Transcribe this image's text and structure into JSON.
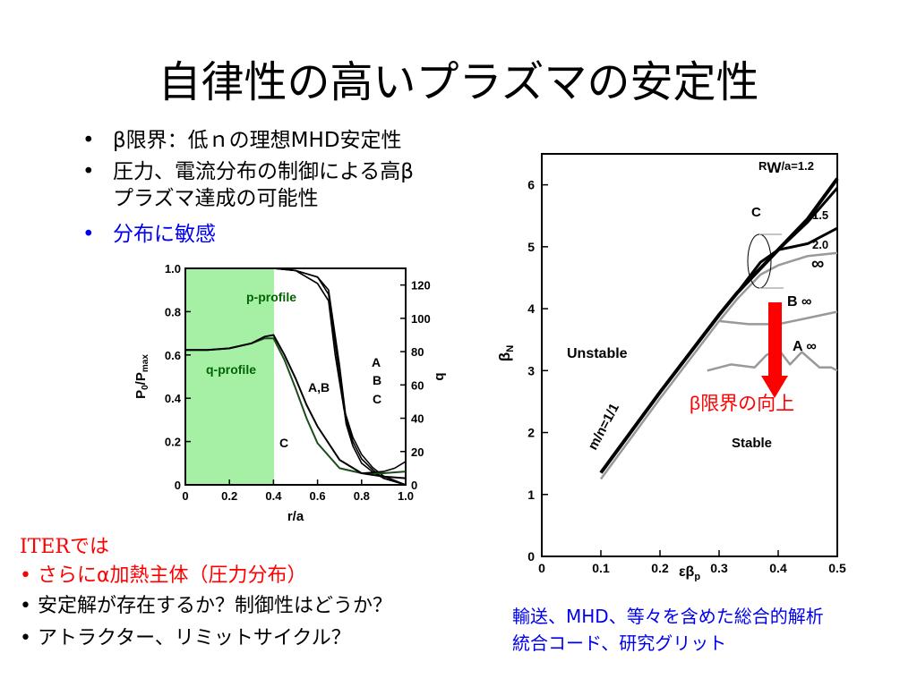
{
  "slide": {
    "title": "自律性の高いプラズマの安定性",
    "bullets": [
      {
        "marker": "•",
        "text": "β限界：低ｎの理想MHD安定性",
        "color": "#000000"
      },
      {
        "marker": "•",
        "text": "圧力、電流分布の制御による高β",
        "text2": "プラズマ達成の可能性",
        "color": "#000000"
      },
      {
        "marker": "•",
        "text": "分布に敏感",
        "color": "#0000ee"
      }
    ],
    "iter_note": {
      "heading": "ITERでは",
      "lines": [
        "• さらにα加熱主体（圧力分布）",
        "• 安定解が存在するか？制御性はどうか？",
        "• アトラクター、リミットサイクル？"
      ]
    },
    "right_note": {
      "lines": [
        "輸送、MHD、等々を含めた総合的解析",
        "統合コード、研究グリット"
      ]
    },
    "colors": {
      "title": "#000000",
      "blue": "#0000ee",
      "red": "#ff0000",
      "green_band": "#a6f0a6",
      "profile_label": "#006400"
    }
  },
  "chart_data": [
    {
      "type": "line",
      "xlabel": "r/a",
      "ylabel_left": "P0/Pmax",
      "ylabel_right": "q",
      "xlim": [
        0,
        1.0
      ],
      "ylim_left": [
        0,
        1.0
      ],
      "ylim_right": [
        0,
        130
      ],
      "x_ticks": [
        "0",
        "0.2",
        "0.4",
        "0.6",
        "0.8",
        "1.0"
      ],
      "y_left_ticks": [
        "0",
        "0.2",
        "0.4",
        "0.6",
        "0.8",
        "1.0"
      ],
      "y_right_ticks": [
        "0",
        "20",
        "40",
        "60",
        "80",
        "100",
        "120"
      ],
      "shaded_region_x": [
        0,
        0.4
      ],
      "annotations": [
        "p-profile",
        "q-profile",
        "A,B",
        "C",
        "A",
        "B",
        "C"
      ],
      "series": [
        {
          "name": "p A",
          "axis": "left",
          "x": [
            0.4,
            0.5,
            0.6,
            0.65,
            0.7,
            0.73,
            0.76,
            0.8,
            0.85,
            0.9,
            1.0
          ],
          "y": [
            1.0,
            0.99,
            0.96,
            0.9,
            0.55,
            0.3,
            0.2,
            0.12,
            0.07,
            0.03,
            0.0
          ]
        },
        {
          "name": "p B",
          "axis": "left",
          "x": [
            0.4,
            0.5,
            0.6,
            0.65,
            0.7,
            0.73,
            0.76,
            0.8,
            0.85,
            0.9,
            1.0
          ],
          "y": [
            1.0,
            0.99,
            0.96,
            0.88,
            0.5,
            0.28,
            0.18,
            0.1,
            0.06,
            0.03,
            0.0
          ]
        },
        {
          "name": "p C",
          "axis": "left",
          "x": [
            0.4,
            0.5,
            0.6,
            0.65,
            0.68,
            0.72,
            0.76,
            0.8,
            0.85,
            0.9,
            1.0
          ],
          "y": [
            1.0,
            0.99,
            0.93,
            0.85,
            0.6,
            0.35,
            0.22,
            0.14,
            0.08,
            0.04,
            0.0
          ]
        },
        {
          "name": "q A,B",
          "axis": "right",
          "x": [
            0,
            0.1,
            0.2,
            0.3,
            0.36,
            0.4,
            0.45,
            0.5,
            0.55,
            0.6,
            0.7,
            0.8,
            0.9,
            1.0
          ],
          "y": [
            81,
            81,
            82,
            85,
            88,
            88,
            75,
            58,
            40,
            25,
            10,
            7,
            7,
            8
          ]
        },
        {
          "name": "q C",
          "axis": "right",
          "x": [
            0,
            0.1,
            0.2,
            0.3,
            0.36,
            0.4,
            0.45,
            0.5,
            0.55,
            0.6,
            0.7,
            0.8,
            0.9,
            1.0
          ],
          "y": [
            81,
            81,
            82,
            85,
            89,
            90,
            78,
            64,
            48,
            35,
            15,
            7,
            5,
            4
          ]
        },
        {
          "name": "q edge",
          "axis": "right",
          "x": [
            0.8,
            0.9,
            0.95,
            1.0
          ],
          "y": [
            7,
            8,
            10,
            14
          ]
        }
      ]
    },
    {
      "type": "line",
      "xlabel": "εβp",
      "ylabel": "βN",
      "xlim": [
        0,
        0.5
      ],
      "ylim": [
        0,
        6.5
      ],
      "x_ticks": [
        "0",
        "0.1",
        "0.2",
        "0.3",
        "0.4",
        "0.5"
      ],
      "y_ticks": [
        "0",
        "1",
        "2",
        "3",
        "4",
        "5",
        "6"
      ],
      "region_labels": [
        "Unstable",
        "Stable"
      ],
      "annotations": [
        "RW/a=1.2",
        "1.5",
        "2.0",
        "∞",
        "B ∞",
        "A ∞",
        "C",
        "m/n=1/1",
        "β限界の向上"
      ],
      "series": [
        {
          "name": "black main",
          "color": "#000000",
          "x": [
            0.1,
            0.2,
            0.3,
            0.33,
            0.4,
            0.45,
            0.5
          ],
          "y": [
            1.35,
            2.65,
            3.9,
            4.25,
            4.95,
            5.45,
            6.1
          ]
        },
        {
          "name": "1.5",
          "color": "#000000",
          "x": [
            0.33,
            0.4,
            0.45,
            0.5
          ],
          "y": [
            4.25,
            4.95,
            5.4,
            5.95
          ]
        },
        {
          "name": "2.0",
          "color": "#000000",
          "x": [
            0.33,
            0.37,
            0.4,
            0.45,
            0.5
          ],
          "y": [
            4.25,
            4.75,
            4.95,
            5.05,
            5.3
          ]
        },
        {
          "name": "gray C",
          "color": "#999999",
          "x": [
            0.1,
            0.2,
            0.3,
            0.33,
            0.37,
            0.4,
            0.45,
            0.5
          ],
          "y": [
            1.25,
            2.55,
            3.8,
            4.15,
            4.55,
            4.7,
            4.85,
            4.9
          ]
        },
        {
          "name": "gray B",
          "color": "#999999",
          "x": [
            0.3,
            0.35,
            0.4,
            0.45,
            0.5
          ],
          "y": [
            3.8,
            3.75,
            3.75,
            3.85,
            3.95
          ]
        },
        {
          "name": "gray A",
          "color": "#999999",
          "x": [
            0.28,
            0.32,
            0.36,
            0.38,
            0.4,
            0.42,
            0.44,
            0.47,
            0.49,
            0.5
          ],
          "y": [
            3.0,
            3.1,
            3.05,
            3.25,
            3.35,
            3.1,
            3.3,
            3.05,
            3.05,
            3.0
          ]
        }
      ]
    }
  ]
}
